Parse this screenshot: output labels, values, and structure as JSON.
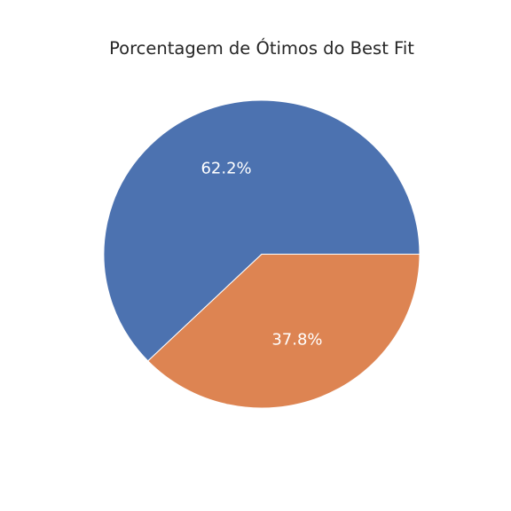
{
  "chart_data": {
    "type": "pie",
    "title": "Porcentagem de Ótimos do Best Fit",
    "slices": [
      {
        "value": 62.2,
        "label_text": "62.2%",
        "color": "#4c72b0"
      },
      {
        "value": 37.8,
        "label_text": "37.8%",
        "color": "#dd8452"
      }
    ],
    "start_angle_deg": 0,
    "direction": "counterclockwise",
    "edge_color": "#ffffff"
  }
}
